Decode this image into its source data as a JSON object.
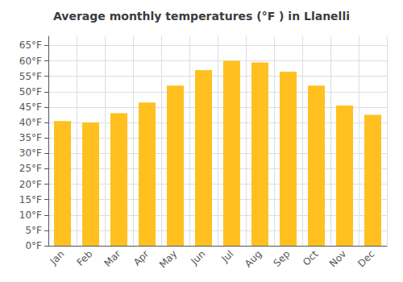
{
  "chart_data": {
    "type": "bar",
    "title": "Average monthly temperatures (°F ) in Llanelli",
    "categories": [
      "Jan",
      "Feb",
      "Mar",
      "Apr",
      "May",
      "Jun",
      "Jul",
      "Aug",
      "Sep",
      "Oct",
      "Nov",
      "Dec"
    ],
    "values": [
      40.5,
      40.0,
      43.0,
      46.5,
      52.0,
      57.0,
      60.0,
      59.5,
      56.5,
      52.0,
      45.5,
      42.5
    ],
    "color": "#FFC020",
    "ylim": [
      0,
      68
    ],
    "yticks": [
      {
        "value": 0,
        "label": "0°F"
      },
      {
        "value": 5,
        "label": "5°F"
      },
      {
        "value": 10,
        "label": "10°F"
      },
      {
        "value": 15,
        "label": "15°F"
      },
      {
        "value": 20,
        "label": "20°F"
      },
      {
        "value": 25,
        "label": "25°F"
      },
      {
        "value": 30,
        "label": "30°F"
      },
      {
        "value": 35,
        "label": "35°F"
      },
      {
        "value": 40,
        "label": "40°F"
      },
      {
        "value": 45,
        "label": "45°F"
      },
      {
        "value": 50,
        "label": "50°F"
      },
      {
        "value": 55,
        "label": "55°F"
      },
      {
        "value": 60,
        "label": "60°F"
      },
      {
        "value": 65,
        "label": "65°F"
      }
    ],
    "grid": true
  }
}
